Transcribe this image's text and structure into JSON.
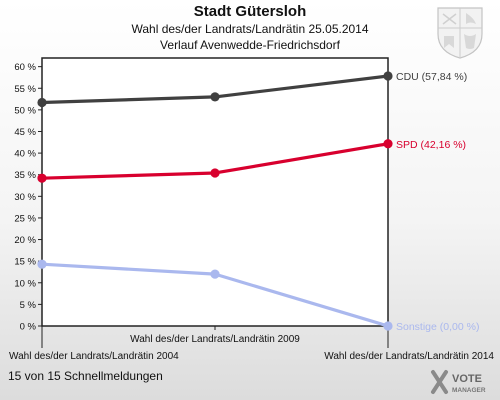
{
  "header": {
    "title": "Stadt Gütersloh",
    "subtitle1": "Wahl des/der Landrats/Landrätin 25.05.2014",
    "subtitle2": "Verlauf Avenwedde-Friedrichsdorf"
  },
  "footer": {
    "status": "15 von 15 Schnellmeldungen"
  },
  "logo": {
    "line1": "VOTE",
    "line2": "MANAGER"
  },
  "chart_data": {
    "type": "line",
    "title": "Stadt Gütersloh",
    "subtitle": "Wahl des/der Landrats/Landrätin 25.05.2014 — Verlauf Avenwedde-Friedrichsdorf",
    "categories": [
      "Wahl des/der Landrats/Landrätin 2004",
      "Wahl des/der Landrats/Landrätin 2009",
      "Wahl des/der Landrats/Landrätin 2014"
    ],
    "yticks": [
      "0 %",
      "5 %",
      "10 %",
      "15 %",
      "20 %",
      "25 %",
      "30 %",
      "35 %",
      "40 %",
      "45 %",
      "50 %",
      "55 %",
      "60 %"
    ],
    "ylim": [
      0,
      62
    ],
    "grid": false,
    "series": [
      {
        "name": "CDU",
        "label": "CDU (57,84 %)",
        "color": "#404040",
        "values": [
          51.7,
          53.0,
          57.84
        ]
      },
      {
        "name": "SPD",
        "label": "SPD (42,16 %)",
        "color": "#d8002e",
        "values": [
          34.2,
          35.4,
          42.16
        ]
      },
      {
        "name": "Sonstige",
        "label": "Sonstige (0,00 %)",
        "color": "#aab8ee",
        "values": [
          14.3,
          12.0,
          0.0
        ]
      }
    ]
  }
}
